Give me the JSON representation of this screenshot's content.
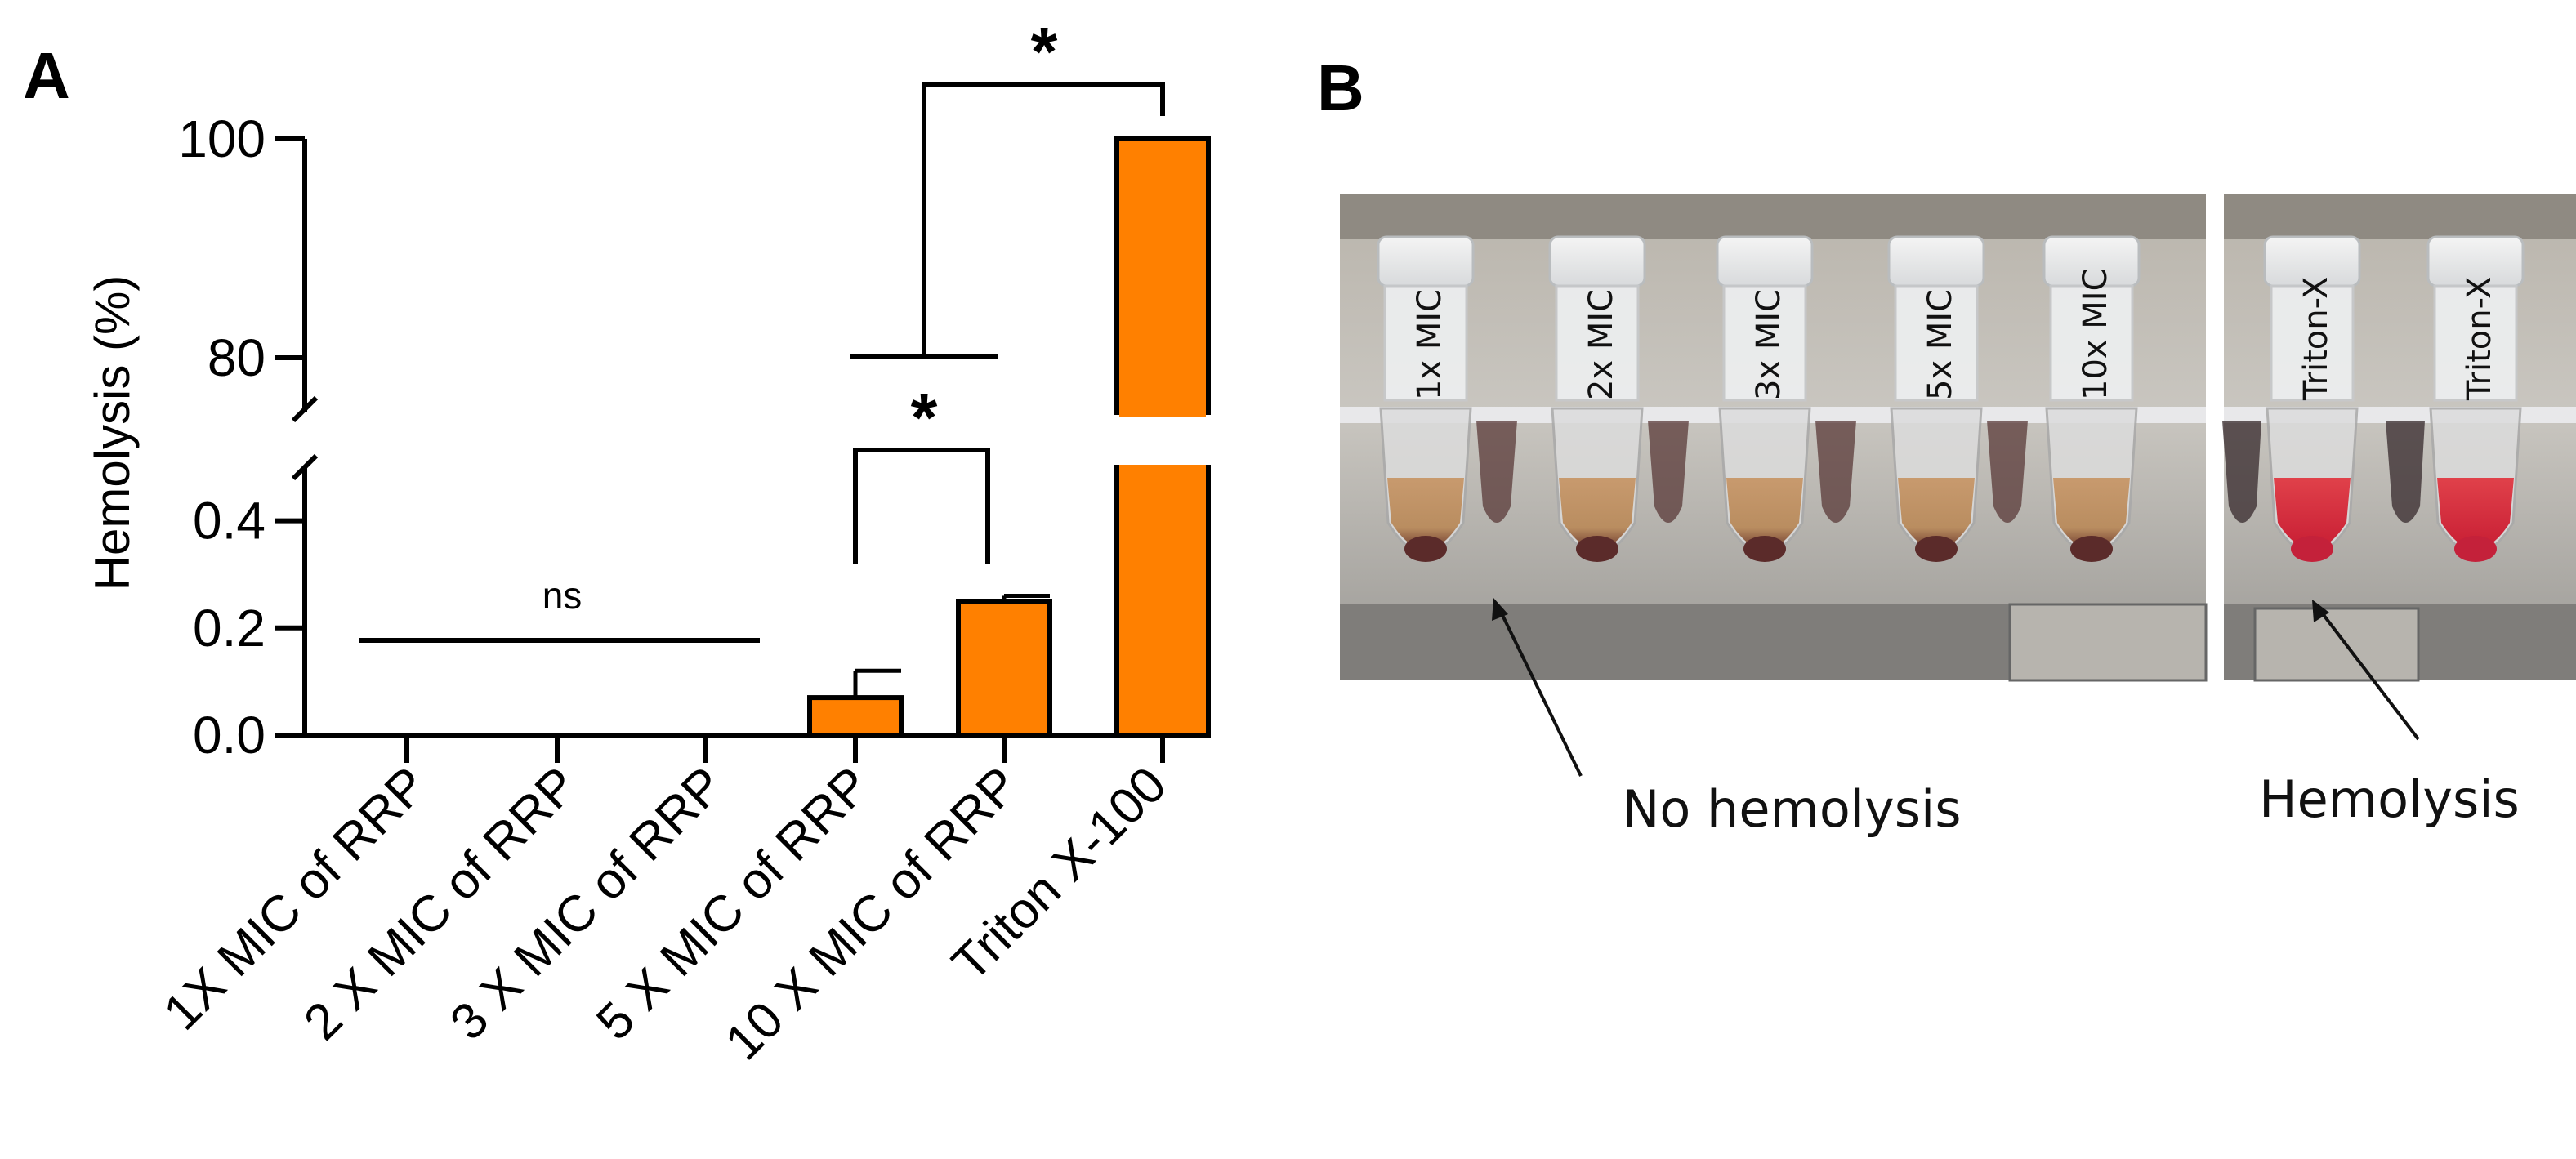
{
  "panels": {
    "a": "A",
    "b": "B"
  },
  "chart_data": {
    "type": "bar",
    "ylabel": "Hemolysis (%)",
    "categories": [
      "1X MIC of RRP",
      "2 X MIC of RRP",
      "3 X MIC of RRP",
      "5 X MIC of RRP",
      "10 X MIC of RRP",
      "Triton X-100"
    ],
    "values": [
      0,
      0,
      0,
      0.07,
      0.25,
      100
    ],
    "error": [
      0,
      0,
      0,
      0.05,
      0.01,
      0
    ],
    "bar_color": "#FF8000",
    "y_axis_broken": true,
    "y_segments": [
      {
        "ylim": [
          0,
          0.5
        ],
        "ticks": [
          "0.0",
          "0.2",
          "0.4"
        ]
      },
      {
        "ylim": [
          75,
          100
        ],
        "ticks": [
          "80",
          "100"
        ]
      }
    ],
    "annotations": [
      {
        "label": "ns",
        "from": "1X MIC of RRP",
        "to": "3 X MIC of RRP"
      },
      {
        "label": "*",
        "from": "5 X MIC of RRP",
        "to": "10 X MIC of RRP"
      },
      {
        "label": "*",
        "from": "5 X MIC of RRP + 10 X MIC of RRP",
        "to": "Triton X-100"
      }
    ]
  },
  "photo": {
    "tube_labels_left": [
      "1x MIC",
      "2x MIC",
      "3x MIC",
      "5x MIC",
      "10x MIC"
    ],
    "tube_labels_right": [
      "Triton-X",
      "Triton-X"
    ],
    "callout_left": "No hemolysis",
    "callout_right": "Hemolysis"
  }
}
